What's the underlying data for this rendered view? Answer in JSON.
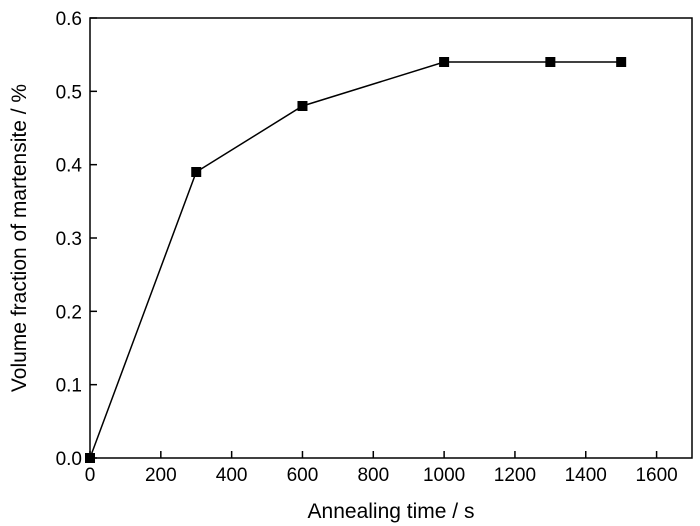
{
  "chart_data": {
    "type": "line",
    "title": "",
    "xlabel": "Annealing time / s",
    "ylabel": "Volume fraction of martensite / %",
    "xlim": [
      0,
      1700
    ],
    "ylim": [
      0,
      0.6
    ],
    "xticks": [
      0,
      200,
      400,
      600,
      800,
      1000,
      1200,
      1400,
      1600
    ],
    "xtick_labels": [
      "0",
      "200",
      "400",
      "600",
      "800",
      "1000",
      "1200",
      "1400",
      "1600"
    ],
    "yticks": [
      0,
      0.1,
      0.2,
      0.3,
      0.4,
      0.5,
      0.6
    ],
    "ytick_labels": [
      "0.0",
      "0.1",
      "0.2",
      "0.3",
      "0.4",
      "0.5",
      "0.6"
    ],
    "grid": false,
    "series": [
      {
        "x": [
          0,
          300,
          600,
          1000,
          1300,
          1500
        ],
        "y": [
          0,
          0.39,
          0.48,
          0.54,
          0.54,
          0.54
        ],
        "marker": "square",
        "color": "#000000"
      }
    ]
  }
}
